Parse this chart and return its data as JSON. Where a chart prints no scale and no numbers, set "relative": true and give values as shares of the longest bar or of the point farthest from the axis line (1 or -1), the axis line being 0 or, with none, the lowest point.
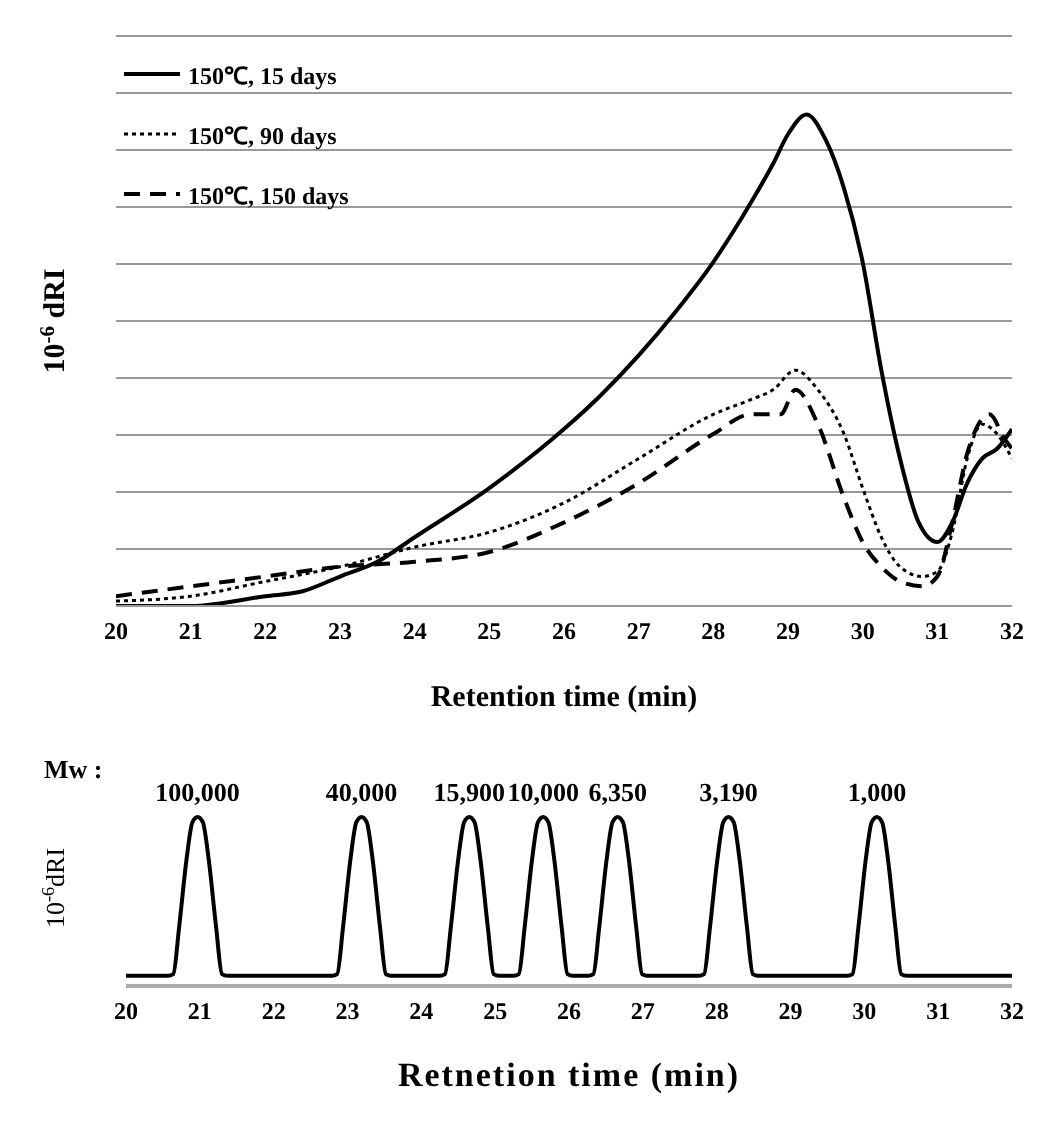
{
  "chart_data": [
    {
      "type": "line",
      "relative": true,
      "xlabel": "Retention time (min)",
      "ylabel": "10$^{-6}$ dRI",
      "xlim": [
        20,
        32
      ],
      "xticks": [
        20,
        21,
        22,
        23,
        24,
        25,
        26,
        27,
        28,
        29,
        30,
        31,
        32
      ],
      "grid": "y",
      "legend": "top left",
      "series": [
        {
          "name": "150℃, 15 days",
          "color": "#000000",
          "line_style": "solid",
          "x": [
            20,
            21,
            22,
            22.5,
            23,
            23.5,
            24,
            25,
            26,
            26.5,
            27,
            27.5,
            28,
            28.5,
            28.8,
            29,
            29.25,
            29.5,
            29.75,
            30,
            30.25,
            30.5,
            30.75,
            31,
            31.2,
            31.4,
            31.6,
            31.8,
            32
          ],
          "values": [
            0,
            0,
            0.02,
            0.03,
            0.06,
            0.09,
            0.14,
            0.24,
            0.36,
            0.43,
            0.51,
            0.6,
            0.7,
            0.82,
            0.9,
            0.96,
            1,
            0.95,
            0.85,
            0.7,
            0.48,
            0.3,
            0.17,
            0.13,
            0.17,
            0.25,
            0.3,
            0.32,
            0.36
          ]
        },
        {
          "name": "150℃, 90 days",
          "color": "#000000",
          "line_style": "dotted",
          "x": [
            20,
            21,
            22,
            23,
            24,
            25,
            26,
            27,
            28,
            28.5,
            28.8,
            29.1,
            29.4,
            29.75,
            30,
            30.25,
            30.5,
            30.8,
            31,
            31.2,
            31.4,
            31.6,
            31.8,
            32
          ],
          "values": [
            0.01,
            0.02,
            0.05,
            0.08,
            0.12,
            0.15,
            0.21,
            0.3,
            0.39,
            0.42,
            0.44,
            0.48,
            0.44,
            0.35,
            0.24,
            0.14,
            0.08,
            0.06,
            0.07,
            0.15,
            0.3,
            0.37,
            0.35,
            0.3
          ]
        },
        {
          "name": "150℃, 150 days",
          "color": "#000000",
          "line_style": "dashed",
          "x": [
            20,
            21,
            22,
            23,
            24,
            25,
            26,
            27,
            28,
            28.5,
            28.9,
            29.1,
            29.4,
            29.75,
            30,
            30.25,
            30.5,
            30.8,
            31,
            31.2,
            31.4,
            31.7,
            31.9,
            32
          ],
          "values": [
            0.02,
            0.04,
            0.06,
            0.08,
            0.09,
            0.11,
            0.17,
            0.25,
            0.35,
            0.39,
            0.39,
            0.44,
            0.37,
            0.22,
            0.13,
            0.08,
            0.05,
            0.04,
            0.06,
            0.17,
            0.31,
            0.39,
            0.34,
            0.32
          ]
        }
      ]
    },
    {
      "type": "line",
      "relative": true,
      "xlabel": "Retnetion time (min)",
      "ylabel": "10$^{-6}$dRI",
      "xlim": [
        20,
        32
      ],
      "xticks": [
        20,
        21,
        22,
        23,
        24,
        25,
        26,
        27,
        28,
        29,
        30,
        31,
        32
      ],
      "annotations": [
        "Mw :",
        {
          "text": "100,000",
          "x": 20.97,
          "y": 1
        },
        {
          "text": "40,000",
          "x": 23.19,
          "y": 1
        },
        {
          "text": "15,900",
          "x": 24.65,
          "y": 1
        },
        {
          "text": "10,000",
          "x": 25.65,
          "y": 1
        },
        {
          "text": "6,350",
          "x": 26.66,
          "y": 1
        },
        {
          "text": "3,190",
          "x": 28.16,
          "y": 1
        },
        {
          "text": "1,000",
          "x": 30.17,
          "y": 1
        }
      ],
      "series": [
        {
          "color": "#000000",
          "line_style": "solid",
          "x": [
            20,
            20.57,
            20.64,
            20.72,
            20.82,
            20.9,
            20.97,
            21.04,
            21.12,
            21.22,
            21.3,
            21.37,
            22.79,
            22.86,
            22.94,
            23.04,
            23.12,
            23.19,
            23.26,
            23.34,
            23.44,
            23.52,
            23.59,
            24.25,
            24.32,
            24.4,
            24.5,
            24.58,
            24.65,
            24.72,
            24.8,
            24.9,
            24.98,
            25.05,
            25.25,
            25.32,
            25.4,
            25.5,
            25.58,
            25.65,
            25.72,
            25.8,
            25.9,
            25.98,
            26.05,
            26.26,
            26.33,
            26.41,
            26.51,
            26.59,
            26.66,
            26.73,
            26.81,
            26.91,
            26.99,
            27.06,
            27.76,
            27.83,
            27.91,
            28.01,
            28.09,
            28.16,
            28.23,
            28.31,
            28.41,
            28.49,
            28.56,
            29.77,
            29.84,
            29.92,
            30.02,
            30.1,
            30.17,
            30.24,
            30.32,
            30.42,
            30.5,
            30.57,
            32
          ],
          "values": [
            0.06,
            0.06,
            0.07,
            0.35,
            0.75,
            0.97,
            1,
            0.97,
            0.75,
            0.35,
            0.07,
            0.06,
            0.06,
            0.07,
            0.35,
            0.75,
            0.97,
            1,
            0.97,
            0.75,
            0.35,
            0.07,
            0.06,
            0.06,
            0.07,
            0.35,
            0.75,
            0.97,
            1,
            0.97,
            0.75,
            0.35,
            0.07,
            0.06,
            0.06,
            0.07,
            0.35,
            0.75,
            0.97,
            1,
            0.97,
            0.75,
            0.35,
            0.07,
            0.06,
            0.06,
            0.07,
            0.35,
            0.75,
            0.97,
            1,
            0.97,
            0.75,
            0.35,
            0.07,
            0.06,
            0.06,
            0.07,
            0.35,
            0.75,
            0.97,
            1,
            0.97,
            0.75,
            0.35,
            0.07,
            0.06,
            0.06,
            0.07,
            0.35,
            0.75,
            0.97,
            1,
            0.97,
            0.75,
            0.35,
            0.07,
            0.06,
            0.06
          ]
        }
      ]
    }
  ]
}
